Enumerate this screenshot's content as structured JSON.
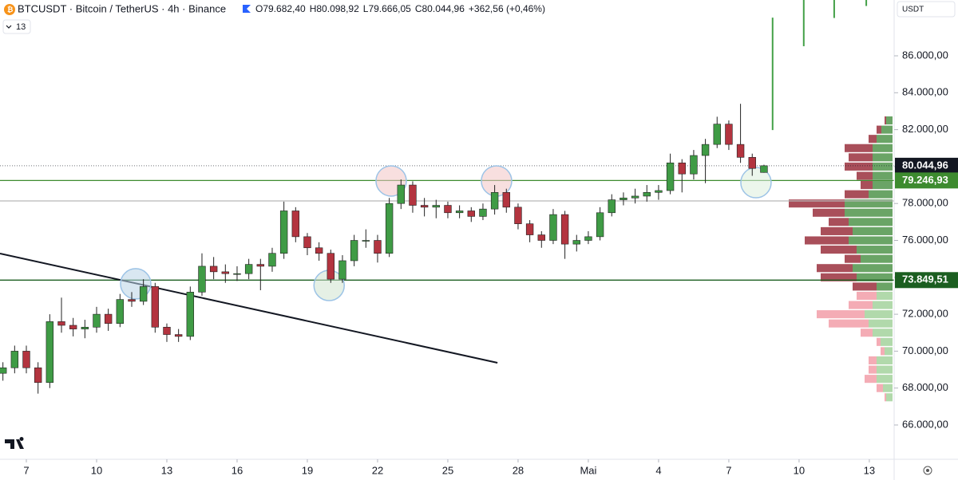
{
  "chart_data": {
    "type": "candlestick",
    "header": {
      "symbol": "BTCUSDT · Bitcoin / TetherUS · 4h · Binance",
      "open": "O79.682,40",
      "high": "H80.098,92",
      "low": "L79.666,05",
      "close": "C80.044,96",
      "change": "+362,56 (+0,46%)",
      "indicator_count": "13",
      "currency": "USDT"
    },
    "xlim": [
      5.875,
      44.06
    ],
    "ylim": [
      64186,
      89024
    ],
    "xticks": [
      7,
      10,
      13,
      16,
      19,
      22,
      25,
      28,
      {
        "value": 31,
        "label": "Mai"
      },
      {
        "value": 34,
        "label": "4"
      },
      {
        "value": 37,
        "label": "7"
      },
      {
        "value": 40,
        "label": "10"
      },
      {
        "value": 43,
        "label": "13"
      }
    ],
    "yticks": [
      {
        "value": 66000,
        "label": "66.000,00"
      },
      {
        "value": 68000,
        "label": "68.000,00"
      },
      {
        "value": 70000,
        "label": "70.000,00"
      },
      {
        "value": 72000,
        "label": "72.000,00"
      },
      {
        "value": 74000,
        "label": "74.000,00"
      },
      {
        "value": 76000,
        "label": "76.000,00"
      },
      {
        "value": 78000,
        "label": "78.000,00"
      },
      {
        "value": 80000,
        "label": "80.000,00"
      },
      {
        "value": 82000,
        "label": "82.000,00"
      },
      {
        "value": 84000,
        "label": "84.000,00"
      },
      {
        "value": 86000,
        "label": "86.000,00"
      }
    ],
    "series": [
      {
        "name": "BTCUSDT",
        "up_color": "#3f9b45",
        "down_color": "#b3343f",
        "x": [
          6,
          6.5,
          7,
          7.5,
          8,
          8.5,
          9,
          9.5,
          10,
          10.5,
          11,
          11.5,
          12,
          12.5,
          13,
          13.5,
          14,
          14.5,
          15,
          15.5,
          16,
          16.5,
          17,
          17.5,
          18,
          18.5,
          19,
          19.5,
          20,
          20.5,
          21,
          21.5,
          22,
          22.5,
          23,
          23.5,
          24,
          24.5,
          25,
          25.5,
          26,
          26.5,
          27,
          27.5,
          28,
          28.5,
          29,
          29.5,
          30,
          30.5,
          31,
          31.5,
          32,
          32.5,
          33,
          33.5,
          34,
          34.5,
          35,
          35.5,
          36,
          36.5,
          37,
          37.5,
          38,
          38.5
        ],
        "open": [
          68800,
          69100,
          70000,
          69100,
          68300,
          71600,
          71400,
          71200,
          71300,
          72000,
          71500,
          72800,
          72700,
          73500,
          71300,
          70900,
          70800,
          73200,
          74600,
          74300,
          74200,
          74200,
          74700,
          74600,
          75300,
          77600,
          76200,
          75600,
          75300,
          73900,
          74900,
          76000,
          76000,
          75300,
          78000,
          79000,
          77900,
          77800,
          77900,
          77500,
          77600,
          77300,
          77700,
          78600,
          77800,
          76900,
          76300,
          76000,
          77400,
          75800,
          76000,
          76200,
          77500,
          78200,
          78300,
          78400,
          78600,
          78700,
          80200,
          79600,
          80600,
          81200,
          82300,
          81200,
          80500,
          79682.4
        ],
        "high": [
          69400,
          70300,
          70300,
          69400,
          72000,
          72900,
          71800,
          71700,
          72400,
          72300,
          73100,
          73200,
          73900,
          73700,
          71500,
          71200,
          73500,
          75300,
          75100,
          74700,
          74600,
          75000,
          75000,
          75600,
          78100,
          77800,
          76400,
          75900,
          75500,
          75200,
          76300,
          76600,
          76300,
          78300,
          79300,
          79200,
          78300,
          78200,
          78100,
          77900,
          77800,
          78000,
          79000,
          78800,
          78000,
          77100,
          76500,
          77700,
          77600,
          76300,
          76500,
          77800,
          78500,
          78600,
          78800,
          79000,
          79000,
          80700,
          80400,
          80900,
          81500,
          82700,
          82500,
          83400,
          80700,
          80098.92
        ],
        "low": [
          68400,
          68800,
          68800,
          67700,
          68000,
          71000,
          70800,
          70700,
          71000,
          71100,
          71300,
          72400,
          72500,
          71000,
          70500,
          70500,
          70600,
          73000,
          73900,
          73700,
          73800,
          73900,
          73300,
          74300,
          75000,
          75900,
          75200,
          74900,
          73700,
          73700,
          74600,
          75600,
          74800,
          75100,
          77700,
          77500,
          77300,
          77200,
          77200,
          77200,
          77000,
          77100,
          77400,
          77500,
          76600,
          75900,
          75600,
          75800,
          75000,
          75400,
          75800,
          76000,
          77300,
          77900,
          78000,
          78100,
          78200,
          78500,
          78600,
          79300,
          79100,
          81000,
          80900,
          80200,
          79500,
          79666.05
        ],
        "close": [
          69100,
          70000,
          69100,
          68300,
          71600,
          71400,
          71200,
          71300,
          72000,
          71500,
          72800,
          72700,
          73500,
          71300,
          70900,
          70800,
          73200,
          74600,
          74300,
          74200,
          74200,
          74700,
          74600,
          75300,
          77600,
          76200,
          75600,
          75300,
          73900,
          74900,
          76000,
          76000,
          75300,
          78000,
          79000,
          77900,
          77800,
          77900,
          77500,
          77600,
          77300,
          77700,
          78600,
          77800,
          76900,
          76300,
          76000,
          77400,
          75800,
          76000,
          76200,
          77500,
          78200,
          78300,
          78400,
          78600,
          78700,
          80200,
          79600,
          80600,
          81200,
          82300,
          81200,
          80500,
          79900,
          80044.96
        ]
      }
    ],
    "levels": [
      {
        "value": 80044.96,
        "label": "80.044,96",
        "color": "#131722",
        "style": "dotted"
      },
      {
        "value": 79246.93,
        "label": "79.246,93",
        "color": "#3d8b2f",
        "style": "solid"
      },
      {
        "value": 73849.51,
        "label": "73.849,51",
        "color": "#1b5e20",
        "style": "solid"
      },
      {
        "value": 78140,
        "color": "#b8b8b8",
        "style": "solid"
      }
    ],
    "trendline": {
      "x": [
        5.875,
        27.12
      ],
      "y": [
        75290,
        69370
      ],
      "color": "#131722"
    },
    "circles": [
      {
        "x": 11.67,
        "y": 73650,
        "color": "#b9d3e6"
      },
      {
        "x": 19.93,
        "y": 73560,
        "color": "#cfe4d0"
      },
      {
        "x": 22.58,
        "y": 79220,
        "color": "#f2c4c4"
      },
      {
        "x": 27.08,
        "y": 79220,
        "color": "#f2c4c4"
      },
      {
        "x": 38.16,
        "y": 79130,
        "color": "#dcefdc"
      }
    ],
    "vertical_lines": {
      "color": "#43a047",
      "x": [
        38.87,
        40.2,
        41.5,
        42.87
      ],
      "low": [
        81980,
        86520,
        88050,
        88700
      ],
      "high": [
        88070,
        89024,
        89024,
        89024
      ]
    },
    "volume_profile": {
      "value_area": [
        73500,
        83000
      ],
      "colors": {
        "up": "#5a9a55",
        "down": "#a03c48",
        "up_light": "#a8d5a2",
        "down_light": "#f3a3ad"
      },
      "prices": [
        82500,
        82000,
        81500,
        81000,
        80500,
        80000,
        79500,
        79000,
        78500,
        78000,
        77500,
        77000,
        76500,
        76000,
        75500,
        75000,
        74500,
        74000,
        73500,
        73000,
        72500,
        72000,
        71500,
        71000,
        70500,
        70000,
        69500,
        69000,
        68500,
        68000,
        67500
      ],
      "up": [
        8,
        14,
        20,
        25,
        25,
        25,
        25,
        25,
        30,
        60,
        60,
        55,
        50,
        55,
        45,
        40,
        50,
        45,
        20,
        20,
        25,
        35,
        30,
        25,
        15,
        10,
        20,
        20,
        20,
        12,
        8
      ],
      "down": [
        2,
        6,
        10,
        35,
        30,
        35,
        20,
        15,
        30,
        70,
        40,
        25,
        40,
        55,
        45,
        20,
        45,
        45,
        30,
        25,
        30,
        60,
        50,
        15,
        5,
        5,
        10,
        10,
        15,
        8,
        2
      ]
    }
  }
}
